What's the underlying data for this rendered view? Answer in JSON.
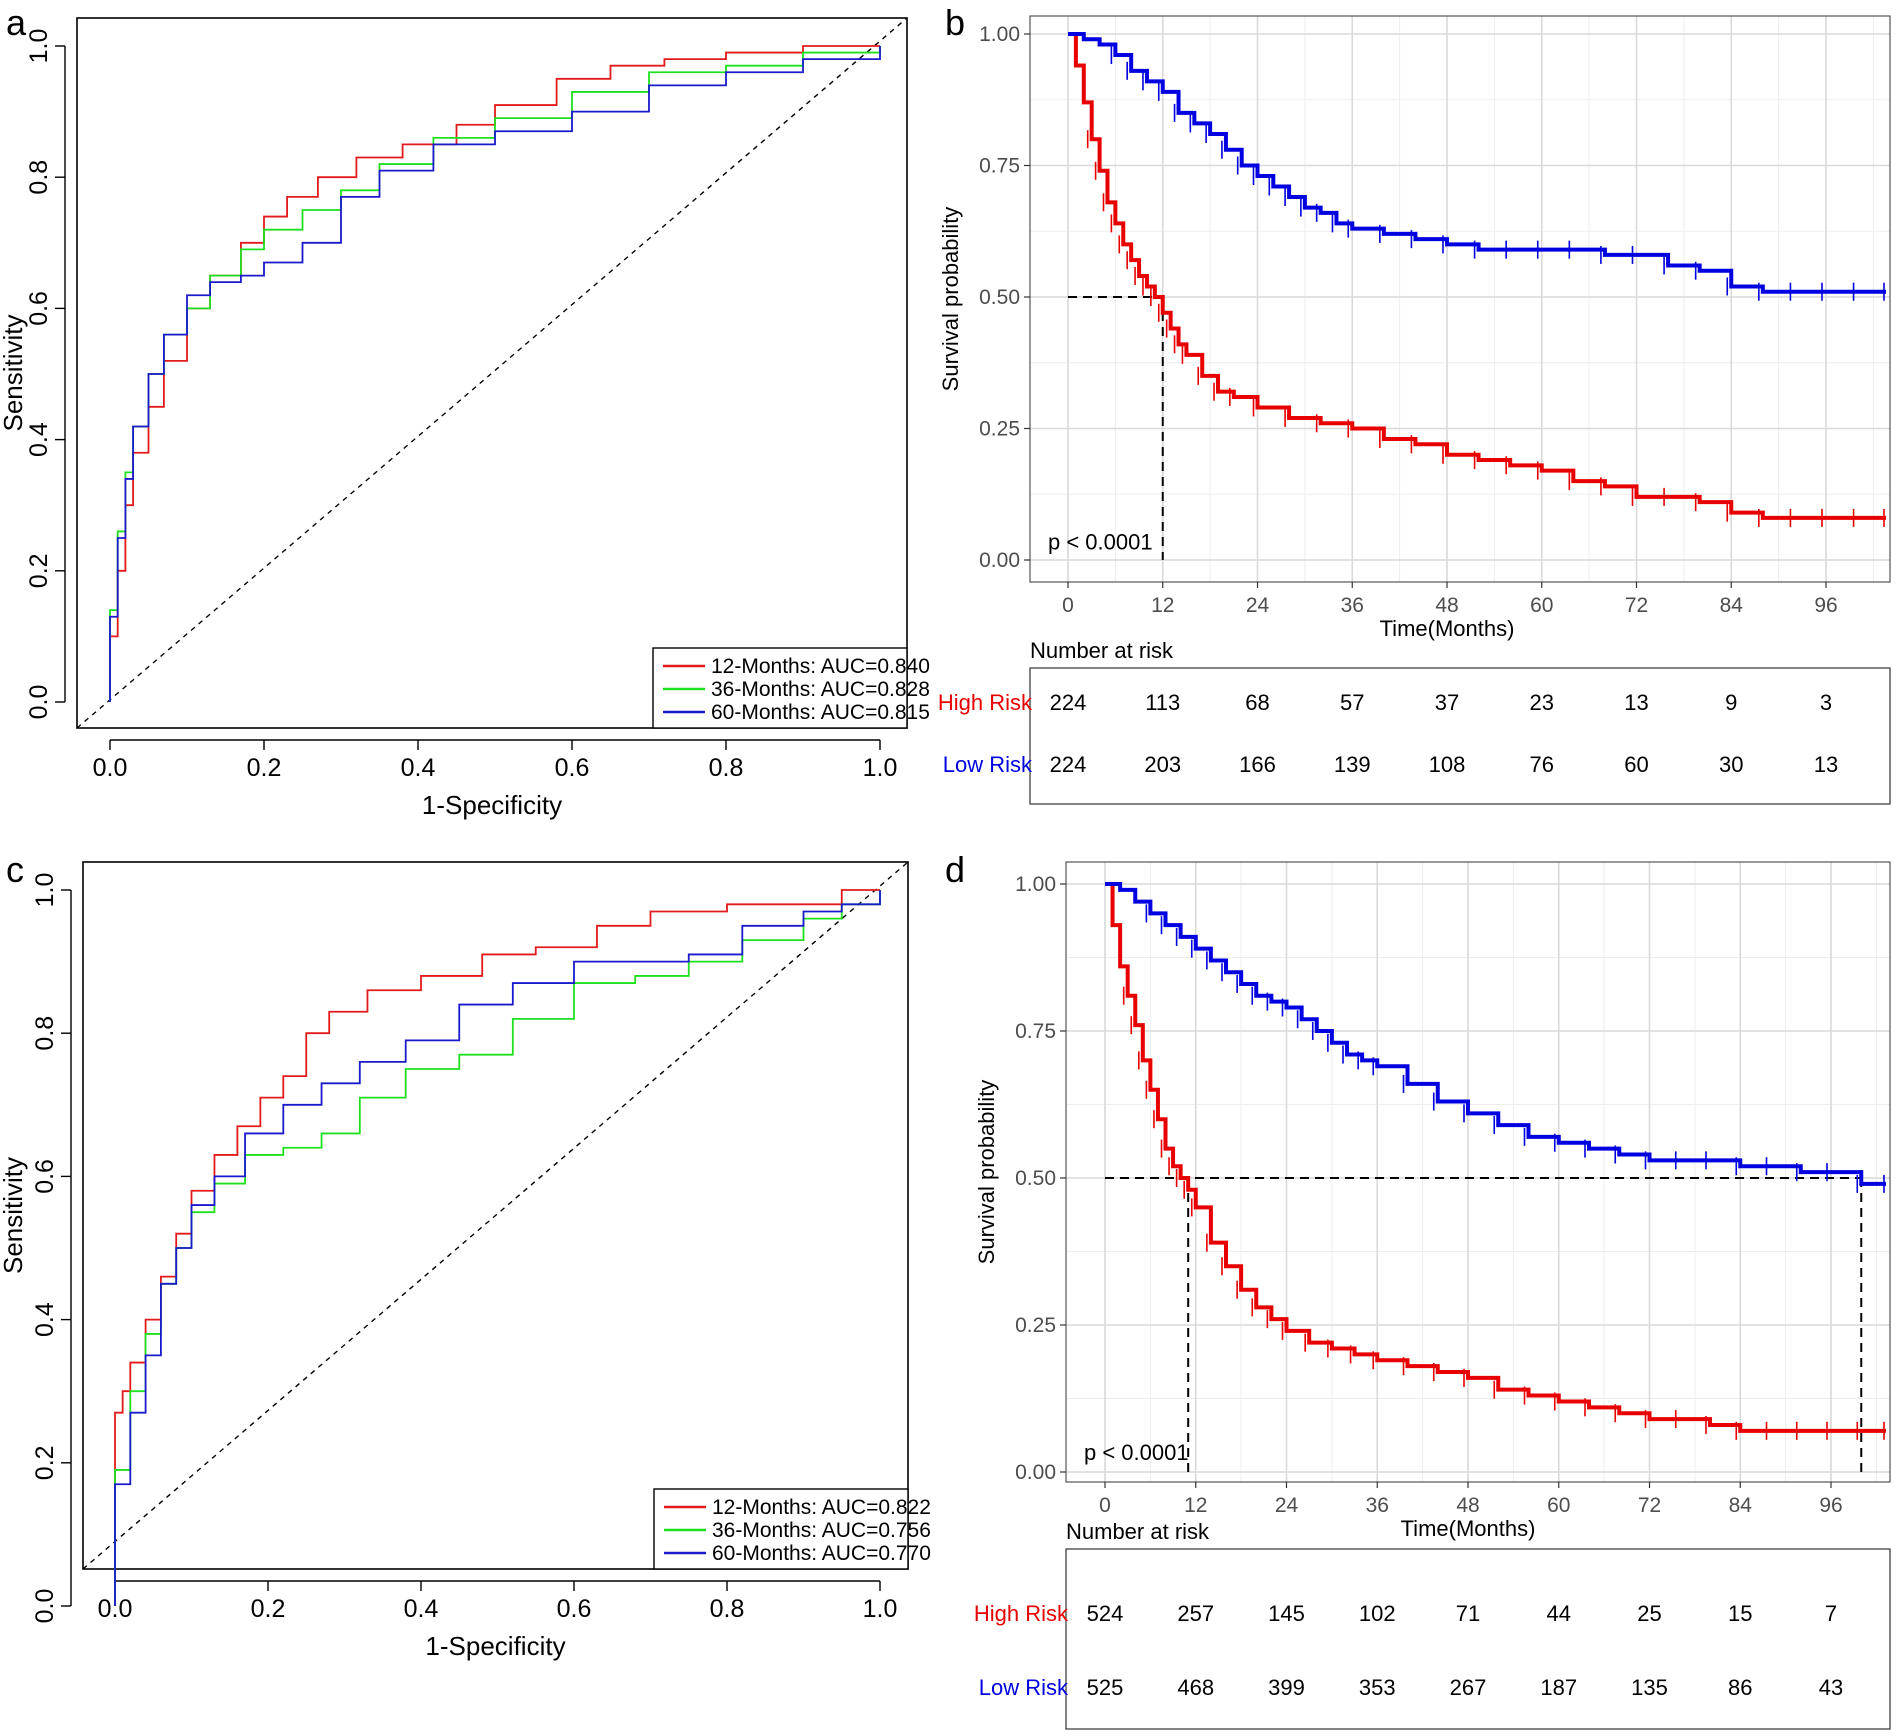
{
  "chart_data": [
    {
      "panel": "a",
      "type": "line",
      "title": "",
      "xlabel": "1-Specificity",
      "ylabel": "Sensitivity",
      "xlim": [
        0,
        1
      ],
      "ylim": [
        0,
        1
      ],
      "xticks": [
        "0.0",
        "0.2",
        "0.4",
        "0.6",
        "0.8",
        "1.0"
      ],
      "yticks": [
        "0.0",
        "0.2",
        "0.4",
        "0.6",
        "0.8",
        "1.0"
      ],
      "legend_position": "bottom-right",
      "series": [
        {
          "name": "12-Months: AUC=0.840",
          "color": "#e31a1c",
          "x": [
            0,
            0,
            0.01,
            0.02,
            0.03,
            0.05,
            0.07,
            0.1,
            0.13,
            0.17,
            0.2,
            0.23,
            0.27,
            0.32,
            0.38,
            0.45,
            0.5,
            0.58,
            0.65,
            0.72,
            0.8,
            0.9,
            1.0
          ],
          "y": [
            0,
            0.1,
            0.2,
            0.3,
            0.38,
            0.45,
            0.52,
            0.6,
            0.65,
            0.7,
            0.74,
            0.77,
            0.8,
            0.83,
            0.85,
            0.88,
            0.91,
            0.95,
            0.97,
            0.98,
            0.99,
            1.0,
            1.0
          ]
        },
        {
          "name": "36-Months: AUC=0.828",
          "color": "#1fe01f",
          "x": [
            0,
            0,
            0.01,
            0.02,
            0.03,
            0.05,
            0.07,
            0.1,
            0.13,
            0.17,
            0.2,
            0.25,
            0.3,
            0.35,
            0.42,
            0.5,
            0.6,
            0.7,
            0.8,
            0.9,
            1.0
          ],
          "y": [
            0,
            0.14,
            0.26,
            0.35,
            0.42,
            0.5,
            0.56,
            0.6,
            0.65,
            0.69,
            0.72,
            0.75,
            0.78,
            0.82,
            0.86,
            0.89,
            0.93,
            0.96,
            0.97,
            0.99,
            1.0
          ]
        },
        {
          "name": "60-Months: AUC=0.815",
          "color": "#1a1acc",
          "x": [
            0,
            0,
            0.01,
            0.02,
            0.03,
            0.05,
            0.07,
            0.1,
            0.13,
            0.17,
            0.2,
            0.25,
            0.3,
            0.35,
            0.42,
            0.5,
            0.6,
            0.7,
            0.8,
            0.9,
            1.0
          ],
          "y": [
            0,
            0.13,
            0.25,
            0.34,
            0.42,
            0.5,
            0.56,
            0.62,
            0.64,
            0.65,
            0.67,
            0.7,
            0.77,
            0.81,
            0.85,
            0.87,
            0.9,
            0.94,
            0.96,
            0.98,
            1.0
          ]
        }
      ]
    },
    {
      "panel": "c",
      "type": "line",
      "title": "",
      "xlabel": "1-Specificity",
      "ylabel": "Sensitivity",
      "xlim": [
        0,
        1
      ],
      "ylim": [
        0,
        1
      ],
      "xticks": [
        "0.0",
        "0.2",
        "0.4",
        "0.6",
        "0.8",
        "1.0"
      ],
      "yticks": [
        "0.0",
        "0.2",
        "0.4",
        "0.6",
        "0.8",
        "1.0"
      ],
      "legend_position": "bottom-right",
      "series": [
        {
          "name": "12-Months: AUC=0.822",
          "color": "#e31a1c",
          "x": [
            0,
            0,
            0.01,
            0.02,
            0.04,
            0.06,
            0.08,
            0.1,
            0.13,
            0.16,
            0.19,
            0.22,
            0.25,
            0.28,
            0.33,
            0.4,
            0.48,
            0.55,
            0.63,
            0.7,
            0.8,
            0.9,
            0.95,
            1.0
          ],
          "y": [
            0,
            0.27,
            0.3,
            0.34,
            0.4,
            0.46,
            0.52,
            0.58,
            0.63,
            0.67,
            0.71,
            0.74,
            0.8,
            0.83,
            0.86,
            0.88,
            0.91,
            0.92,
            0.95,
            0.97,
            0.98,
            0.98,
            1.0,
            1.0
          ]
        },
        {
          "name": "36-Months: AUC=0.756",
          "color": "#1fe01f",
          "x": [
            0,
            0,
            0.02,
            0.04,
            0.06,
            0.08,
            0.1,
            0.13,
            0.17,
            0.22,
            0.27,
            0.32,
            0.38,
            0.45,
            0.52,
            0.6,
            0.68,
            0.75,
            0.82,
            0.9,
            0.95,
            1.0
          ],
          "y": [
            0,
            0.19,
            0.3,
            0.38,
            0.45,
            0.5,
            0.55,
            0.59,
            0.63,
            0.64,
            0.66,
            0.71,
            0.75,
            0.77,
            0.82,
            0.87,
            0.88,
            0.9,
            0.93,
            0.96,
            0.98,
            1.0
          ]
        },
        {
          "name": "60-Months: AUC=0.770",
          "color": "#1a1acc",
          "x": [
            0,
            0,
            0.02,
            0.04,
            0.06,
            0.08,
            0.1,
            0.13,
            0.17,
            0.22,
            0.27,
            0.32,
            0.38,
            0.45,
            0.52,
            0.6,
            0.68,
            0.75,
            0.82,
            0.9,
            0.95,
            1.0
          ],
          "y": [
            0,
            0.17,
            0.27,
            0.35,
            0.45,
            0.5,
            0.56,
            0.6,
            0.66,
            0.7,
            0.73,
            0.76,
            0.79,
            0.84,
            0.87,
            0.9,
            0.9,
            0.91,
            0.95,
            0.97,
            0.98,
            1.0
          ]
        }
      ]
    },
    {
      "panel": "b",
      "type": "line",
      "title": "",
      "xlabel": "Time(Months)",
      "ylabel": "Survival probability",
      "xlim": [
        -4,
        106
      ],
      "ylim": [
        -0.05,
        1.04
      ],
      "xticks": [
        0,
        12,
        24,
        36,
        48,
        60,
        72,
        84,
        96
      ],
      "yticks": [
        "0.00",
        "0.25",
        "0.50",
        "0.75",
        "1.00"
      ],
      "pvalue": "p < 0.0001",
      "median_lines": [
        {
          "x": 12,
          "y": 0.5
        }
      ],
      "series": [
        {
          "name": "High Risk",
          "color": "#e80000",
          "x": [
            0,
            1,
            2,
            3,
            4,
            5,
            6,
            7,
            8,
            9,
            10,
            11,
            12,
            13,
            14,
            15,
            17,
            19,
            21,
            24,
            28,
            32,
            36,
            40,
            44,
            48,
            52,
            56,
            60,
            64,
            68,
            72,
            76,
            80,
            84,
            88,
            92,
            96,
            100,
            104
          ],
          "y": [
            1.0,
            0.94,
            0.87,
            0.8,
            0.74,
            0.68,
            0.64,
            0.6,
            0.57,
            0.54,
            0.52,
            0.5,
            0.47,
            0.44,
            0.41,
            0.39,
            0.35,
            0.32,
            0.31,
            0.29,
            0.27,
            0.26,
            0.25,
            0.23,
            0.22,
            0.2,
            0.19,
            0.18,
            0.17,
            0.15,
            0.14,
            0.12,
            0.12,
            0.11,
            0.09,
            0.08,
            0.08,
            0.08,
            0.08,
            0.08
          ]
        },
        {
          "name": "Low Risk",
          "color": "#0000e0",
          "x": [
            0,
            2,
            4,
            6,
            8,
            10,
            12,
            14,
            16,
            18,
            20,
            22,
            24,
            26,
            28,
            30,
            32,
            34,
            36,
            40,
            44,
            48,
            52,
            56,
            60,
            64,
            68,
            72,
            76,
            80,
            84,
            88,
            92,
            96,
            100,
            104
          ],
          "y": [
            1.0,
            0.99,
            0.98,
            0.96,
            0.93,
            0.91,
            0.89,
            0.85,
            0.83,
            0.81,
            0.78,
            0.75,
            0.73,
            0.71,
            0.69,
            0.67,
            0.66,
            0.64,
            0.63,
            0.62,
            0.61,
            0.6,
            0.59,
            0.59,
            0.59,
            0.59,
            0.58,
            0.58,
            0.56,
            0.55,
            0.52,
            0.51,
            0.51,
            0.51,
            0.51,
            0.51
          ]
        }
      ],
      "risk_table": {
        "title": "Number at risk",
        "times": [
          0,
          12,
          24,
          36,
          48,
          60,
          72,
          84,
          96
        ],
        "rows": [
          {
            "label": "High Risk",
            "color": "#e80000",
            "values": [
              "224",
              "113",
              "68",
              "57",
              "37",
              "23",
              "13",
              "9",
              "3"
            ]
          },
          {
            "label": "Low  Risk",
            "color": "#0000e0",
            "values": [
              "224",
              "203",
              "166",
              "139",
              "108",
              "76",
              "60",
              "30",
              "13"
            ]
          }
        ]
      }
    },
    {
      "panel": "d",
      "type": "line",
      "title": "",
      "xlabel": "Time(Months)",
      "ylabel": "Survival probability",
      "xlim": [
        -4,
        106
      ],
      "ylim": [
        -0.05,
        1.04
      ],
      "xticks": [
        0,
        12,
        24,
        36,
        48,
        60,
        72,
        84,
        96
      ],
      "yticks": [
        "0.00",
        "0.25",
        "0.50",
        "0.75",
        "1.00"
      ],
      "pvalue": "p < 0.0001",
      "median_lines": [
        {
          "x": 11,
          "y": 0.5
        },
        {
          "x": 100,
          "y": 0.5
        }
      ],
      "series": [
        {
          "name": "High Risk",
          "color": "#e80000",
          "x": [
            0,
            1,
            2,
            3,
            4,
            5,
            6,
            7,
            8,
            9,
            10,
            11,
            12,
            14,
            16,
            18,
            20,
            22,
            24,
            27,
            30,
            33,
            36,
            40,
            44,
            48,
            52,
            56,
            60,
            64,
            68,
            72,
            76,
            80,
            84,
            88,
            92,
            96,
            100,
            104
          ],
          "y": [
            1.0,
            0.93,
            0.86,
            0.81,
            0.76,
            0.7,
            0.65,
            0.6,
            0.55,
            0.52,
            0.5,
            0.48,
            0.45,
            0.39,
            0.35,
            0.31,
            0.28,
            0.26,
            0.24,
            0.22,
            0.21,
            0.2,
            0.19,
            0.18,
            0.17,
            0.16,
            0.14,
            0.13,
            0.12,
            0.11,
            0.1,
            0.09,
            0.09,
            0.08,
            0.07,
            0.07,
            0.07,
            0.07,
            0.07,
            0.07
          ]
        },
        {
          "name": "Low Risk",
          "color": "#0000e0",
          "x": [
            0,
            2,
            4,
            6,
            8,
            10,
            12,
            14,
            16,
            18,
            20,
            22,
            24,
            26,
            28,
            30,
            32,
            34,
            36,
            40,
            44,
            48,
            52,
            56,
            60,
            64,
            68,
            72,
            76,
            80,
            84,
            88,
            92,
            96,
            100,
            104
          ],
          "y": [
            1.0,
            0.99,
            0.97,
            0.95,
            0.93,
            0.91,
            0.89,
            0.87,
            0.85,
            0.83,
            0.81,
            0.8,
            0.79,
            0.77,
            0.75,
            0.73,
            0.71,
            0.7,
            0.69,
            0.66,
            0.63,
            0.61,
            0.59,
            0.57,
            0.56,
            0.55,
            0.54,
            0.53,
            0.53,
            0.53,
            0.52,
            0.52,
            0.51,
            0.51,
            0.49,
            0.49
          ]
        }
      ],
      "risk_table": {
        "title": "Number at risk",
        "times": [
          0,
          12,
          24,
          36,
          48,
          60,
          72,
          84,
          96
        ],
        "rows": [
          {
            "label": "High Risk",
            "color": "#e80000",
            "values": [
              "524",
              "257",
              "145",
              "102",
              "71",
              "44",
              "25",
              "15",
              "7"
            ]
          },
          {
            "label": "Low   Risk",
            "color": "#0000e0",
            "values": [
              "525",
              "468",
              "399",
              "353",
              "267",
              "187",
              "135",
              "86",
              "43"
            ]
          }
        ]
      }
    }
  ]
}
